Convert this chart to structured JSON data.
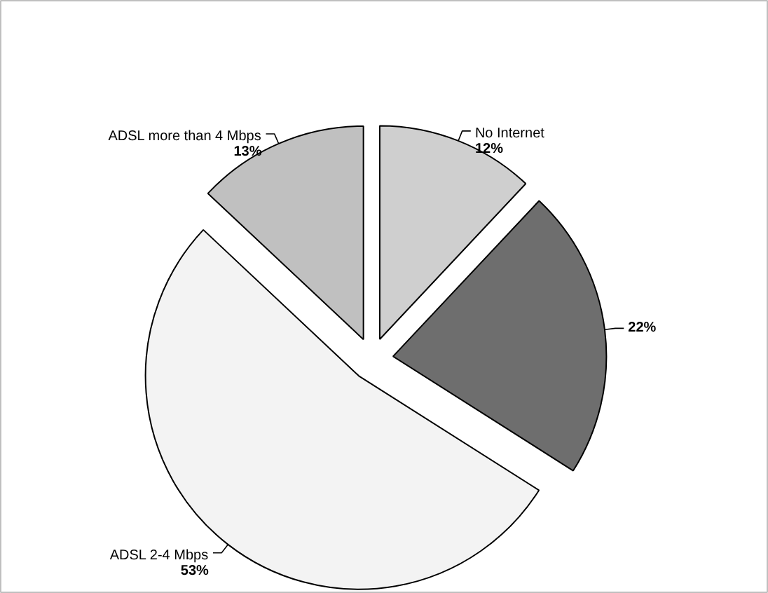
{
  "chart_data": {
    "type": "pie",
    "categories": [
      "No Internet",
      null,
      "ADSL 2-4 Mbps",
      "ADSL more than 4 Mbps"
    ],
    "values": [
      12,
      22,
      53,
      13
    ],
    "colors": [
      "#cfcfcf",
      "#6e6e6e",
      "#f3f3f3",
      "#c0c0c0"
    ],
    "value_labels": [
      "12%",
      "22%",
      "53%",
      "13%"
    ]
  }
}
